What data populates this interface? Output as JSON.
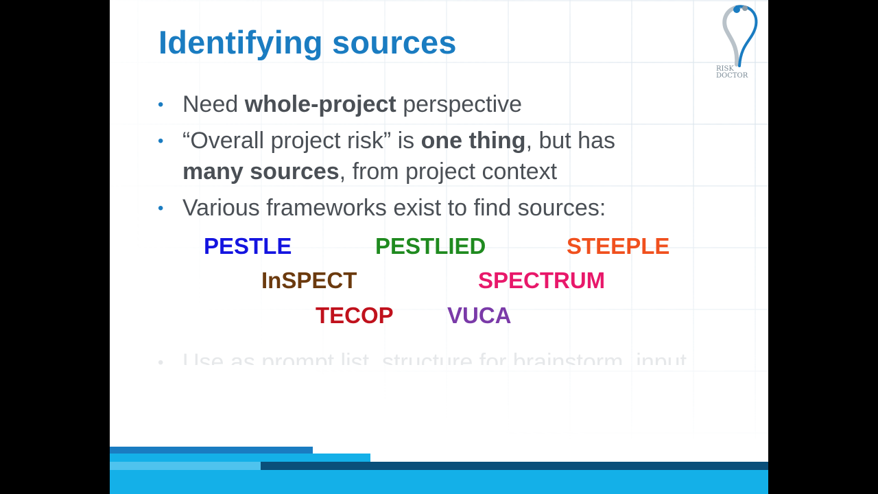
{
  "slide": {
    "title": "Identifying sources",
    "logo": {
      "icon": "risk-doctor-logo-icon",
      "line1": "RISK",
      "line2": "DOCTOR"
    },
    "bullet_icon": "•",
    "bullets": [
      {
        "parts": [
          {
            "text": "Need ",
            "bold": false
          },
          {
            "text": "whole-project",
            "bold": true
          },
          {
            "text": " perspective",
            "bold": false
          }
        ]
      },
      {
        "parts": [
          {
            "text": "“Overall project risk” is ",
            "bold": false
          },
          {
            "text": "one thing",
            "bold": true
          },
          {
            "text": ", but has",
            "bold": false
          }
        ]
      },
      {
        "parts": [
          {
            "text": "many sources",
            "bold": true
          },
          {
            "text": ", from project context",
            "bold": false
          }
        ]
      },
      {
        "parts": [
          {
            "text": "Various frameworks exist to find sources:",
            "bold": false
          }
        ]
      }
    ],
    "frameworks": [
      {
        "name": "PESTLE",
        "color": "#1414e0"
      },
      {
        "name": "PESTLIED",
        "color": "#1f8a1f"
      },
      {
        "name": "STEEPLE",
        "color": "#f0501e"
      },
      {
        "name": "InSPECT",
        "color": "#6b3a0e"
      },
      {
        "name": "SPECTRUM",
        "color": "#e8186a"
      },
      {
        "name": "TECOP",
        "color": "#c0111c"
      },
      {
        "name": "VUCA",
        "color": "#7a3aa8"
      }
    ],
    "faded_bullet": "Use as prompt list, structure for brainstorm, input"
  },
  "colors": {
    "title": "#1a7cc1",
    "body_text": "#4a4f55",
    "band_dark": "#1a7cc1",
    "band_cyan": "#14b0e8",
    "band_navy": "#0a4f7a"
  }
}
